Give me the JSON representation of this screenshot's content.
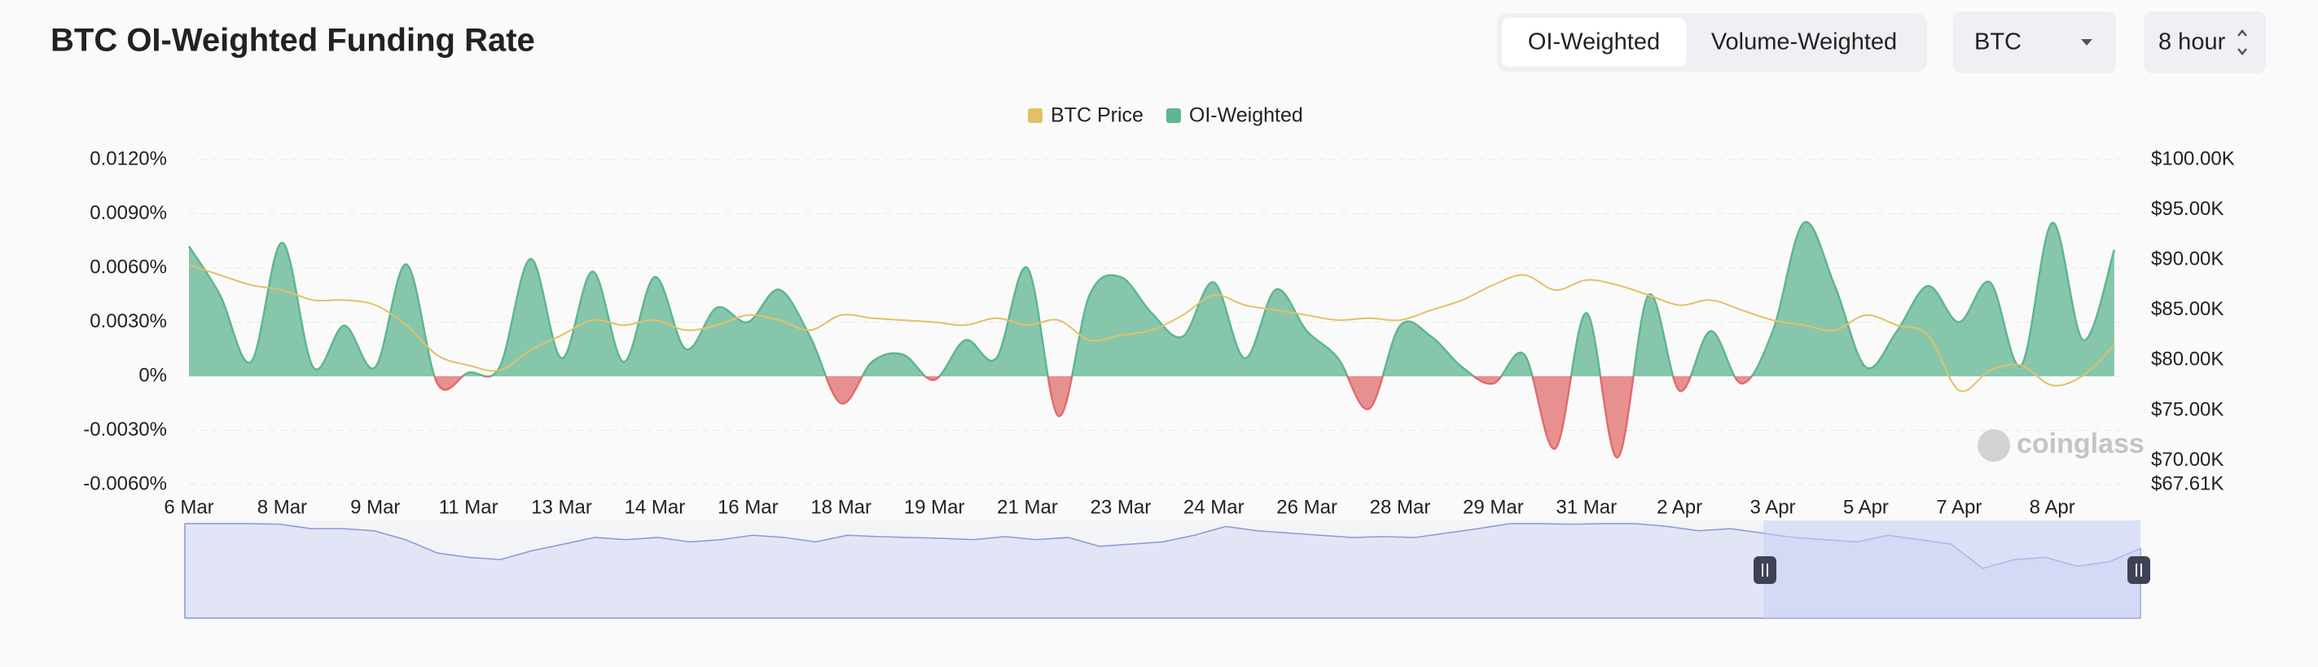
{
  "header": {
    "title": "BTC OI-Weighted Funding Rate",
    "tabs": [
      "OI-Weighted",
      "Volume-Weighted"
    ],
    "coin": "BTC",
    "interval": "8 hour"
  },
  "chart_data": {
    "type": "line",
    "watermark": "coinglass",
    "categories": [
      "6 Mar",
      null,
      null,
      "8 Mar",
      null,
      null,
      "9 Mar",
      null,
      null,
      "11 Mar",
      null,
      null,
      "13 Mar",
      null,
      null,
      "14 Mar",
      null,
      null,
      "16 Mar",
      null,
      null,
      "18 Mar",
      null,
      null,
      "19 Mar",
      null,
      null,
      "21 Mar",
      null,
      null,
      "23 Mar",
      null,
      null,
      "24 Mar",
      null,
      null,
      "26 Mar",
      null,
      null,
      "28 Mar",
      null,
      null,
      "29 Mar",
      null,
      null,
      "31 Mar",
      null,
      null,
      "2 Apr",
      null,
      null,
      "3 Apr",
      null,
      null,
      "5 Apr",
      null,
      null,
      "7 Apr",
      null,
      null,
      "8 Apr",
      null,
      null
    ],
    "series": [
      {
        "name": "BTC Price",
        "type": "line",
        "axis": "y2",
        "color": "#e3c065",
        "values": [
          89500,
          88500,
          87500,
          87000,
          86000,
          86000,
          85500,
          83500,
          80500,
          79500,
          79000,
          81000,
          82500,
          84000,
          83500,
          84000,
          83000,
          83500,
          84500,
          84000,
          83000,
          84500,
          84200,
          84000,
          83800,
          83500,
          84200,
          83500,
          84000,
          82000,
          82500,
          83000,
          84500,
          86500,
          85500,
          85000,
          84500,
          84000,
          84200,
          84000,
          85000,
          86000,
          87500,
          88500,
          87000,
          88000,
          87500,
          86500,
          85500,
          86000,
          85000,
          84000,
          83500,
          83000,
          84500,
          83500,
          82500,
          77000,
          79000,
          79500,
          77500,
          78500,
          81500
        ]
      },
      {
        "name": "OI-Weighted",
        "type": "area",
        "color": "#5fb592",
        "negative_color": "#e06c6c",
        "values": [
          0.0072,
          0.0045,
          0.0008,
          0.0074,
          0.0005,
          0.0028,
          0.0005,
          0.0062,
          -0.0004,
          0.0002,
          0.0005,
          0.0065,
          0.001,
          0.0058,
          0.0008,
          0.0055,
          0.0015,
          0.0038,
          0.003,
          0.0048,
          0.0022,
          -0.0015,
          0.0008,
          0.0012,
          -0.0002,
          0.002,
          0.001,
          0.006,
          -0.0022,
          0.0045,
          0.0055,
          0.0035,
          0.0022,
          0.0052,
          0.001,
          0.0048,
          0.0025,
          0.001,
          -0.0018,
          0.0028,
          0.0022,
          0.0005,
          -0.0004,
          0.0012,
          -0.004,
          0.0035,
          -0.0045,
          0.0045,
          -0.0008,
          0.0025,
          -0.0004,
          0.0025,
          0.0085,
          0.005,
          0.0005,
          0.0025,
          0.005,
          0.003,
          0.0052,
          0.0006,
          0.0085,
          0.002,
          0.007
        ]
      }
    ],
    "ylim": [
      -0.006,
      0.012
    ],
    "yticks": [
      {
        "value": -0.006,
        "label": "-0.0060%"
      },
      {
        "value": -0.003,
        "label": "-0.0030%"
      },
      {
        "value": 0,
        "label": "0%"
      },
      {
        "value": 0.003,
        "label": "0.0030%"
      },
      {
        "value": 0.006,
        "label": "0.0060%"
      },
      {
        "value": 0.009,
        "label": "0.0090%"
      },
      {
        "value": 0.012,
        "label": "0.0120%"
      }
    ],
    "y2lim": [
      67610,
      100000
    ],
    "y2ticks": [
      {
        "value": 67610,
        "label": "$67.61K"
      },
      {
        "value": 70000,
        "label": "$70.00K"
      },
      {
        "value": 75000,
        "label": "$75.00K"
      },
      {
        "value": 80000,
        "label": "$80.00K"
      },
      {
        "value": 85000,
        "label": "$85.00K"
      },
      {
        "value": 90000,
        "label": "$90.00K"
      },
      {
        "value": 95000,
        "label": "$95.00K"
      },
      {
        "value": 100000,
        "label": "$100.00K"
      }
    ],
    "grid": true,
    "legend": "top"
  }
}
